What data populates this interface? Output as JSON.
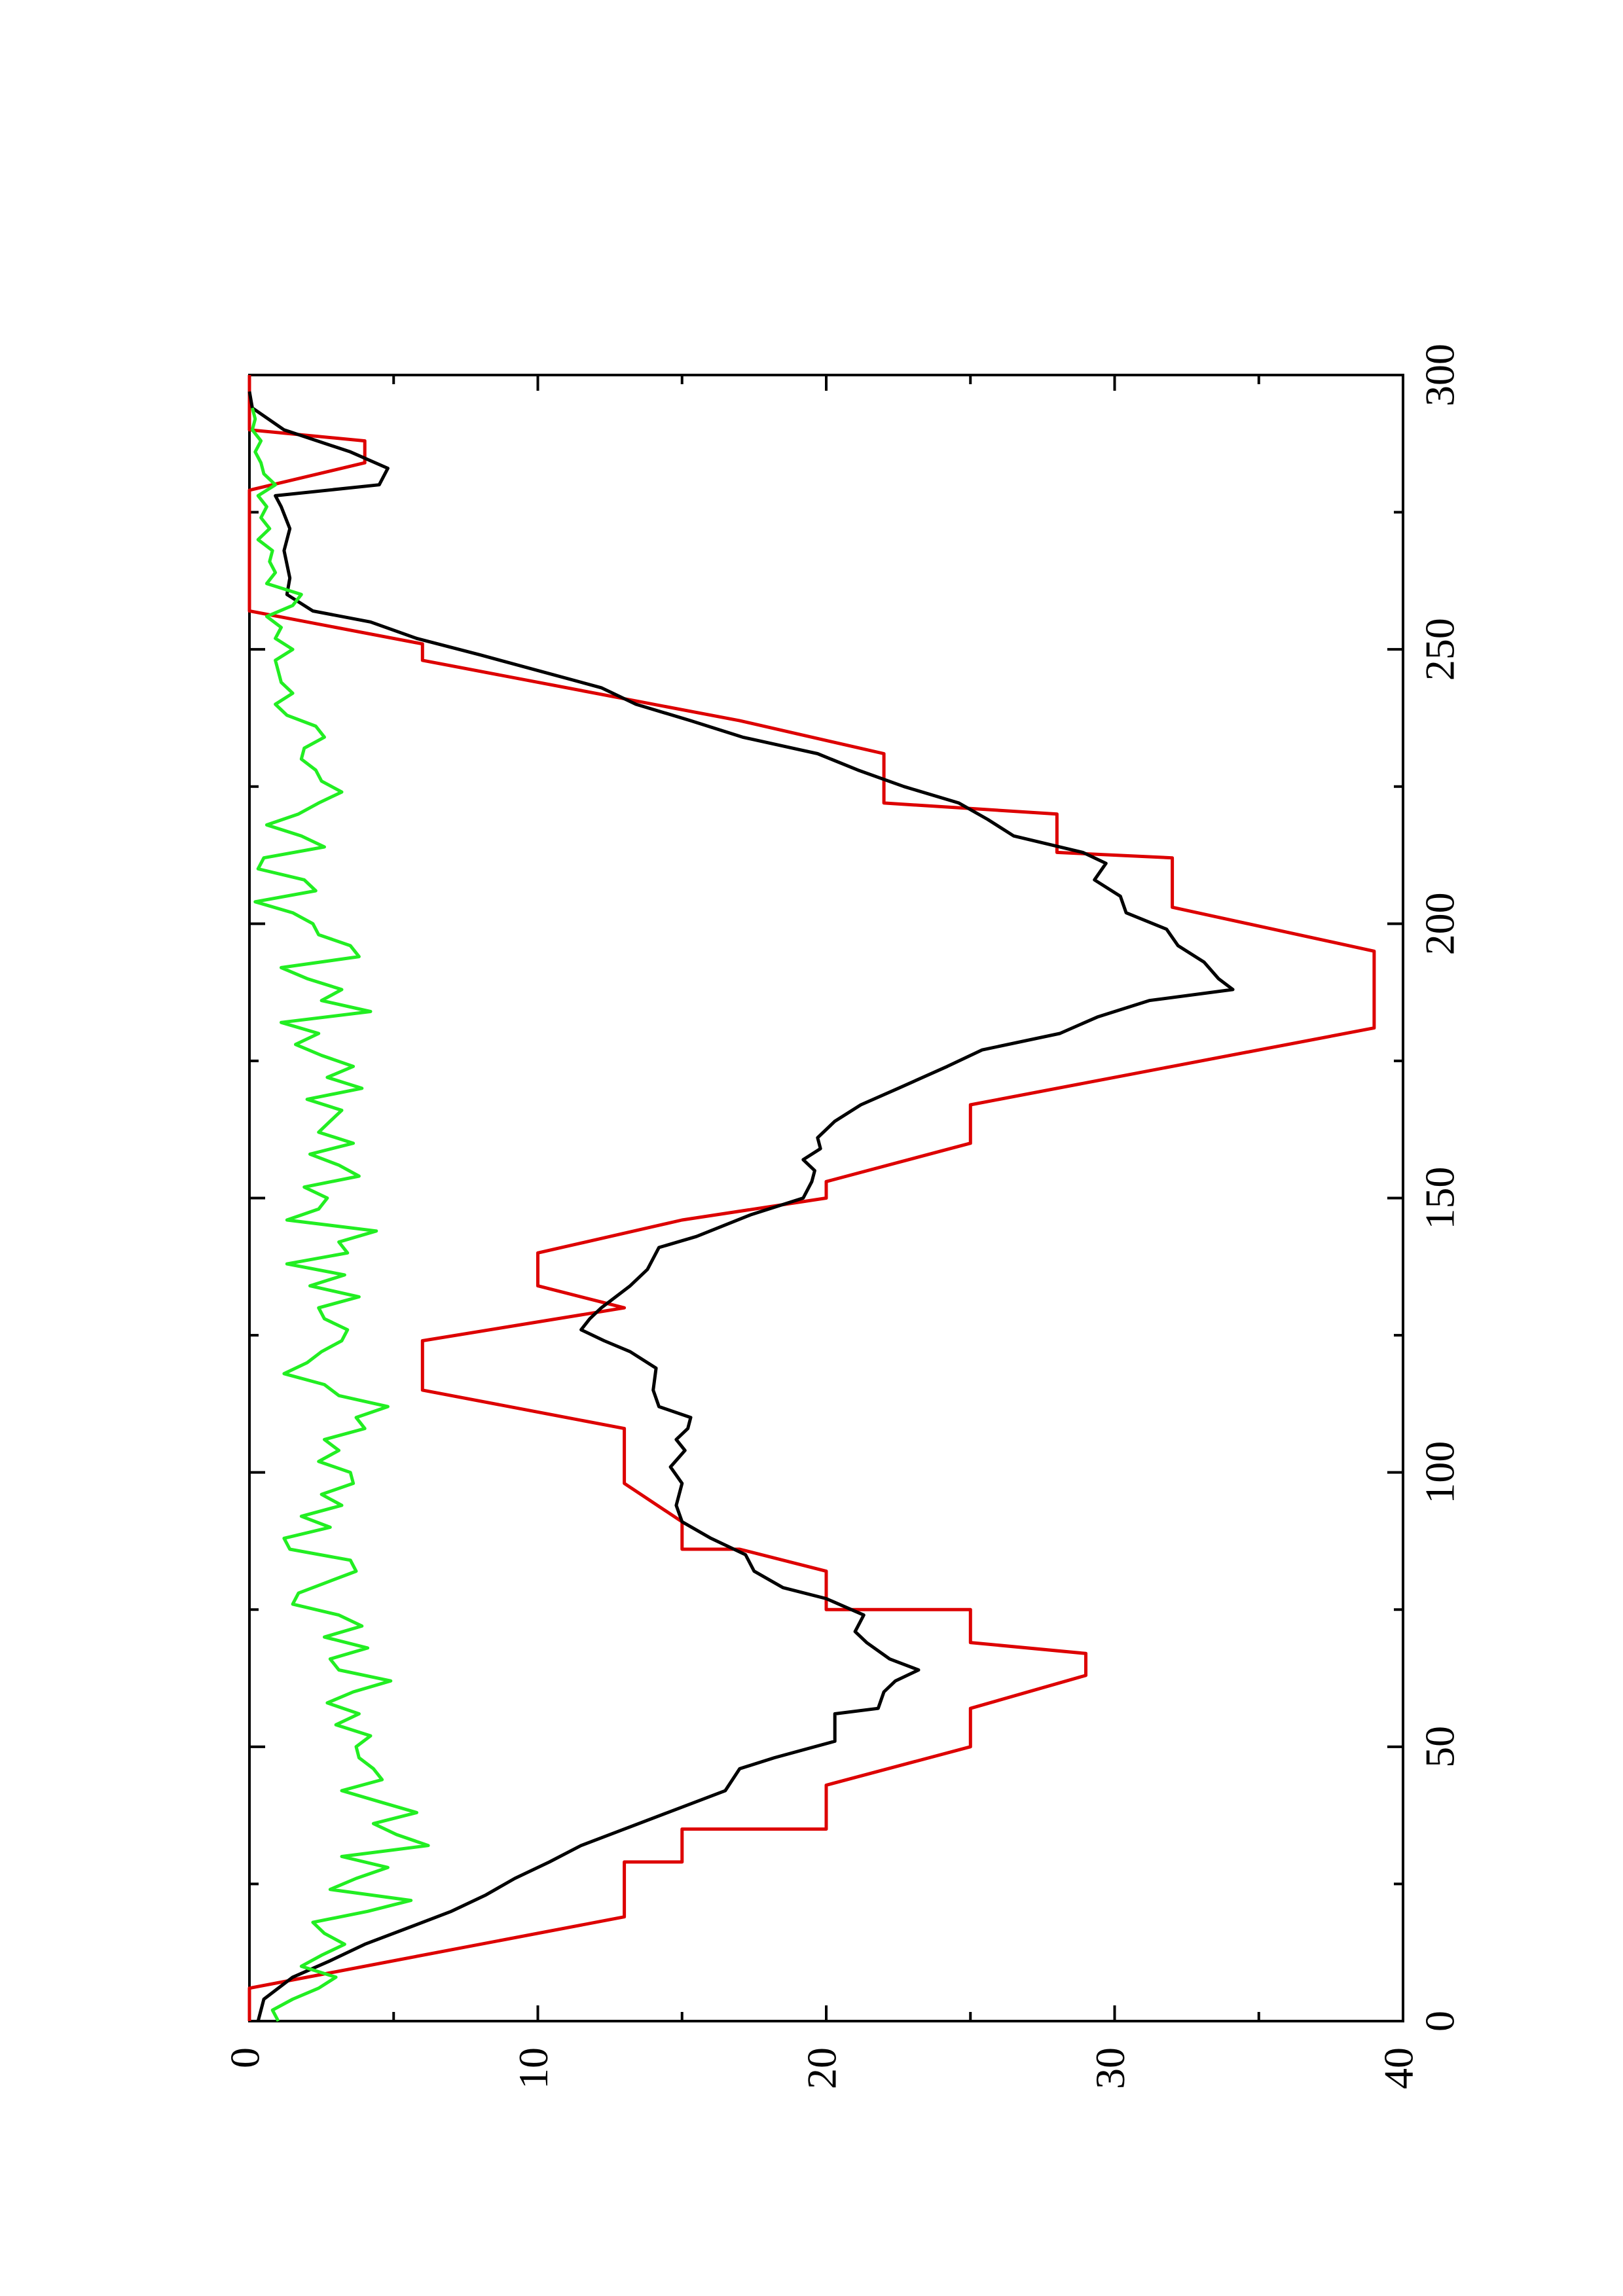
{
  "chart_data": {
    "type": "line",
    "title": "",
    "xlabel": "",
    "ylabel": "",
    "orientation": "rotated 90 degrees counter-clockwise (x axis runs bottom-to-top on the page, y axis runs left-to-right)",
    "xlim": [
      0,
      300
    ],
    "ylim": [
      0,
      40
    ],
    "x_ticks": [
      "0",
      "50",
      "100",
      "150",
      "200",
      "250",
      "300"
    ],
    "y_ticks": [
      "0",
      "10",
      "20",
      "30",
      "40"
    ],
    "grid": false,
    "legend": "none",
    "series": [
      {
        "color": "#dd0000",
        "style": "stepped",
        "points": [
          [
            0,
            0
          ],
          [
            6,
            0
          ],
          [
            19,
            13
          ],
          [
            29,
            13
          ],
          [
            29,
            15
          ],
          [
            35,
            15
          ],
          [
            35,
            20
          ],
          [
            43,
            20
          ],
          [
            50,
            25
          ],
          [
            57,
            25
          ],
          [
            63,
            29
          ],
          [
            67,
            29
          ],
          [
            69,
            25
          ],
          [
            75,
            25
          ],
          [
            75,
            20
          ],
          [
            82,
            20
          ],
          [
            86,
            17
          ],
          [
            86,
            15
          ],
          [
            91,
            15
          ],
          [
            98,
            13
          ],
          [
            108,
            13
          ],
          [
            115,
            6
          ],
          [
            124,
            6
          ],
          [
            130,
            13
          ],
          [
            134,
            10
          ],
          [
            140,
            10
          ],
          [
            146,
            15
          ],
          [
            150,
            20
          ],
          [
            153,
            20
          ],
          [
            160,
            25
          ],
          [
            167,
            25
          ],
          [
            174,
            32
          ],
          [
            181,
            39
          ],
          [
            185,
            39
          ],
          [
            195,
            39
          ],
          [
            203,
            32
          ],
          [
            212,
            32
          ],
          [
            213,
            28
          ],
          [
            220,
            28
          ],
          [
            222,
            22
          ],
          [
            231,
            22
          ],
          [
            237,
            17
          ],
          [
            248,
            6
          ],
          [
            251,
            6
          ],
          [
            257,
            0
          ],
          [
            279,
            0
          ],
          [
            284,
            4
          ],
          [
            288,
            4
          ],
          [
            290,
            0
          ],
          [
            300,
            0
          ]
        ]
      },
      {
        "color": "#000000",
        "style": "smooth",
        "points": [
          [
            0,
            0.3
          ],
          [
            4,
            0.5
          ],
          [
            8,
            1.5
          ],
          [
            11,
            2.8
          ],
          [
            14,
            4
          ],
          [
            17,
            5.5
          ],
          [
            20,
            7
          ],
          [
            23,
            8.2
          ],
          [
            26,
            9.2
          ],
          [
            29,
            10.4
          ],
          [
            32,
            11.5
          ],
          [
            35,
            13
          ],
          [
            38,
            14.5
          ],
          [
            40,
            15.5
          ],
          [
            42,
            16.5
          ],
          [
            46,
            17
          ],
          [
            48,
            18.2
          ],
          [
            51,
            20.3
          ],
          [
            56,
            20.3
          ],
          [
            57,
            21.8
          ],
          [
            60,
            22
          ],
          [
            62,
            22.4
          ],
          [
            64,
            23.2
          ],
          [
            66,
            22.2
          ],
          [
            69,
            21.4
          ],
          [
            71,
            21
          ],
          [
            74,
            21.3
          ],
          [
            77,
            20
          ],
          [
            79,
            18.5
          ],
          [
            82,
            17.5
          ],
          [
            85,
            17.2
          ],
          [
            88,
            16
          ],
          [
            91,
            15
          ],
          [
            94,
            14.8
          ],
          [
            98,
            15
          ],
          [
            101,
            14.6
          ],
          [
            104,
            15.1
          ],
          [
            106,
            14.8
          ],
          [
            108,
            15.2
          ],
          [
            110,
            15.3
          ],
          [
            112,
            14.2
          ],
          [
            115,
            14
          ],
          [
            119,
            14.1
          ],
          [
            122,
            13.2
          ],
          [
            124,
            12.3
          ],
          [
            126,
            11.5
          ],
          [
            128,
            11.8
          ],
          [
            130,
            12.2
          ],
          [
            134,
            13.2
          ],
          [
            137,
            13.8
          ],
          [
            141,
            14.2
          ],
          [
            143,
            15.5
          ],
          [
            147,
            17.4
          ],
          [
            150,
            19.2
          ],
          [
            153,
            19.5
          ],
          [
            155,
            19.6
          ],
          [
            157,
            19.2
          ],
          [
            159,
            19.8
          ],
          [
            161,
            19.7
          ],
          [
            164,
            20.3
          ],
          [
            167,
            21.2
          ],
          [
            170,
            22.5
          ],
          [
            174,
            24.2
          ],
          [
            177,
            25.4
          ],
          [
            180,
            28.1
          ],
          [
            183,
            29.4
          ],
          [
            186,
            31.2
          ],
          [
            188,
            34.1
          ],
          [
            190,
            33.6
          ],
          [
            193,
            33.1
          ],
          [
            196,
            32.2
          ],
          [
            199,
            31.8
          ],
          [
            202,
            30.4
          ],
          [
            205,
            30.2
          ],
          [
            208,
            29.3
          ],
          [
            211,
            29.7
          ],
          [
            213,
            28.9
          ],
          [
            216,
            26.5
          ],
          [
            219,
            25.6
          ],
          [
            222,
            24.6
          ],
          [
            225,
            22.7
          ],
          [
            228,
            21.1
          ],
          [
            231,
            19.7
          ],
          [
            234,
            17.1
          ],
          [
            237,
            15.3
          ],
          [
            240,
            13.4
          ],
          [
            243,
            12.2
          ],
          [
            246,
            10.1
          ],
          [
            249,
            8
          ],
          [
            252,
            5.8
          ],
          [
            255,
            4.2
          ],
          [
            257,
            2.2
          ],
          [
            260,
            1.3
          ],
          [
            263,
            1.4
          ],
          [
            268,
            1.2
          ],
          [
            272,
            1.4
          ],
          [
            276,
            1.1
          ],
          [
            278,
            0.9
          ],
          [
            280,
            4.5
          ],
          [
            283,
            4.8
          ],
          [
            286,
            3.5
          ],
          [
            290,
            1.2
          ],
          [
            294,
            0.1
          ],
          [
            297,
            0
          ]
        ]
      },
      {
        "color": "#22ee22",
        "style": "noisy",
        "points": [
          [
            0,
            1
          ],
          [
            2,
            0.8
          ],
          [
            4,
            1.5
          ],
          [
            6,
            2.4
          ],
          [
            8,
            3
          ],
          [
            10,
            1.8
          ],
          [
            12,
            2.5
          ],
          [
            14,
            3.3
          ],
          [
            16,
            2.6
          ],
          [
            18,
            2.2
          ],
          [
            20,
            4.1
          ],
          [
            22,
            5.6
          ],
          [
            24,
            2.8
          ],
          [
            26,
            3.7
          ],
          [
            28,
            4.8
          ],
          [
            30,
            3.2
          ],
          [
            32,
            6.2
          ],
          [
            34,
            5.1
          ],
          [
            36,
            4.3
          ],
          [
            38,
            5.8
          ],
          [
            40,
            4.5
          ],
          [
            42,
            3.2
          ],
          [
            44,
            4.6
          ],
          [
            46,
            4.3
          ],
          [
            48,
            3.8
          ],
          [
            50,
            3.7
          ],
          [
            52,
            4.2
          ],
          [
            54,
            3
          ],
          [
            56,
            3.8
          ],
          [
            58,
            2.7
          ],
          [
            60,
            3.6
          ],
          [
            62,
            4.9
          ],
          [
            64,
            3.1
          ],
          [
            66,
            2.8
          ],
          [
            68,
            4.1
          ],
          [
            70,
            2.6
          ],
          [
            72,
            3.9
          ],
          [
            74,
            3.1
          ],
          [
            76,
            1.5
          ],
          [
            78,
            1.7
          ],
          [
            80,
            2.7
          ],
          [
            82,
            3.7
          ],
          [
            84,
            3.5
          ],
          [
            86,
            1.4
          ],
          [
            88,
            1.2
          ],
          [
            90,
            2.8
          ],
          [
            92,
            1.8
          ],
          [
            94,
            3.2
          ],
          [
            96,
            2.5
          ],
          [
            98,
            3.6
          ],
          [
            100,
            3.5
          ],
          [
            102,
            2.4
          ],
          [
            104,
            3.1
          ],
          [
            106,
            2.6
          ],
          [
            108,
            4
          ],
          [
            110,
            3.7
          ],
          [
            112,
            4.8
          ],
          [
            114,
            3.1
          ],
          [
            116,
            2.6
          ],
          [
            118,
            1.2
          ],
          [
            120,
            2
          ],
          [
            122,
            2.5
          ],
          [
            124,
            3.2
          ],
          [
            126,
            3.4
          ],
          [
            128,
            2.6
          ],
          [
            130,
            2.4
          ],
          [
            132,
            3.8
          ],
          [
            134,
            2.1
          ],
          [
            136,
            3.3
          ],
          [
            138,
            1.3
          ],
          [
            140,
            3.4
          ],
          [
            142,
            3.1
          ],
          [
            144,
            4.4
          ],
          [
            146,
            1.3
          ],
          [
            148,
            2.4
          ],
          [
            150,
            2.7
          ],
          [
            152,
            1.9
          ],
          [
            154,
            3.8
          ],
          [
            156,
            3.1
          ],
          [
            158,
            2.1
          ],
          [
            160,
            3.6
          ],
          [
            162,
            2.4
          ],
          [
            164,
            2.8
          ],
          [
            166,
            3.2
          ],
          [
            168,
            2
          ],
          [
            170,
            3.9
          ],
          [
            172,
            2.7
          ],
          [
            174,
            3.6
          ],
          [
            176,
            2.5
          ],
          [
            178,
            1.6
          ],
          [
            180,
            2.4
          ],
          [
            182,
            1.1
          ],
          [
            184,
            4.2
          ],
          [
            186,
            2.5
          ],
          [
            188,
            3.2
          ],
          [
            190,
            2
          ],
          [
            192,
            1.1
          ],
          [
            194,
            3.8
          ],
          [
            196,
            3.5
          ],
          [
            198,
            2.4
          ],
          [
            200,
            2.2
          ],
          [
            202,
            1.5
          ],
          [
            204,
            0.2
          ],
          [
            206,
            2.3
          ],
          [
            208,
            1.9
          ],
          [
            210,
            0.3
          ],
          [
            212,
            0.5
          ],
          [
            214,
            2.6
          ],
          [
            216,
            1.8
          ],
          [
            218,
            0.6
          ],
          [
            220,
            1.7
          ],
          [
            222,
            2.4
          ],
          [
            224,
            3.2
          ],
          [
            226,
            2.5
          ],
          [
            228,
            2.3
          ],
          [
            230,
            1.8
          ],
          [
            232,
            1.9
          ],
          [
            234,
            2.6
          ],
          [
            236,
            2.3
          ],
          [
            238,
            1.3
          ],
          [
            240,
            0.9
          ],
          [
            242,
            1.5
          ],
          [
            244,
            1.1
          ],
          [
            246,
            1
          ],
          [
            248,
            0.9
          ],
          [
            250,
            1.5
          ],
          [
            252,
            0.9
          ],
          [
            254,
            1.1
          ],
          [
            256,
            0.6
          ],
          [
            258,
            1.5
          ],
          [
            260,
            1.8
          ],
          [
            262,
            0.6
          ],
          [
            264,
            0.9
          ],
          [
            266,
            0.7
          ],
          [
            268,
            0.8
          ],
          [
            270,
            0.3
          ],
          [
            272,
            0.7
          ],
          [
            274,
            0.4
          ],
          [
            276,
            0.6
          ],
          [
            278,
            0.3
          ],
          [
            280,
            0.9
          ],
          [
            282,
            0.5
          ],
          [
            284,
            0.4
          ],
          [
            286,
            0.2
          ],
          [
            288,
            0.4
          ],
          [
            290,
            0.1
          ],
          [
            292,
            0.2
          ],
          [
            294,
            0.1
          ]
        ]
      }
    ]
  }
}
